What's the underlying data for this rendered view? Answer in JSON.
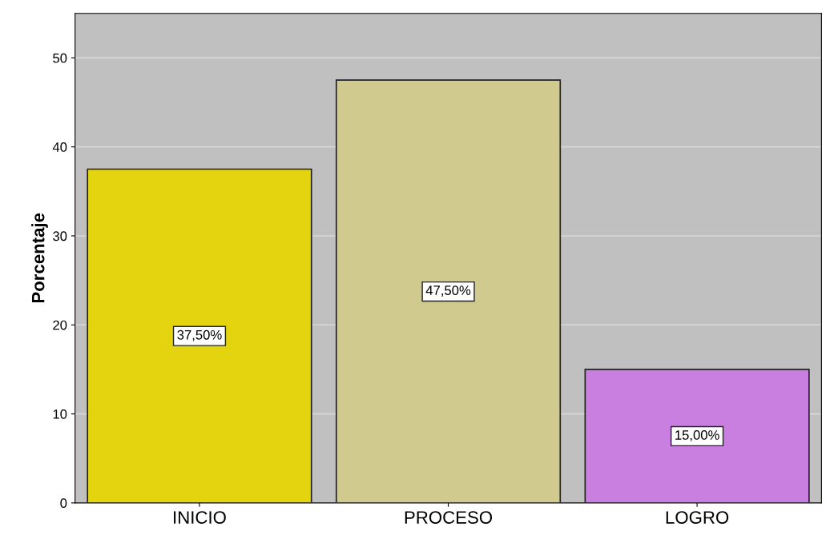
{
  "chart_data": {
    "type": "bar",
    "ylabel": "Porcentaje",
    "categories": [
      "INICIO",
      "PROCESO",
      "LOGRO"
    ],
    "values": [
      37.5,
      47.5,
      15.0
    ],
    "colors": [
      "#e3d40f",
      "#d0ca8f",
      "#c87fe0"
    ],
    "value_labels": [
      "37,50%",
      "47,50%",
      "15,00%"
    ],
    "ylim": [
      0,
      55
    ],
    "yticks": [
      0,
      10,
      20,
      30,
      40,
      50
    ],
    "grid": "y"
  }
}
